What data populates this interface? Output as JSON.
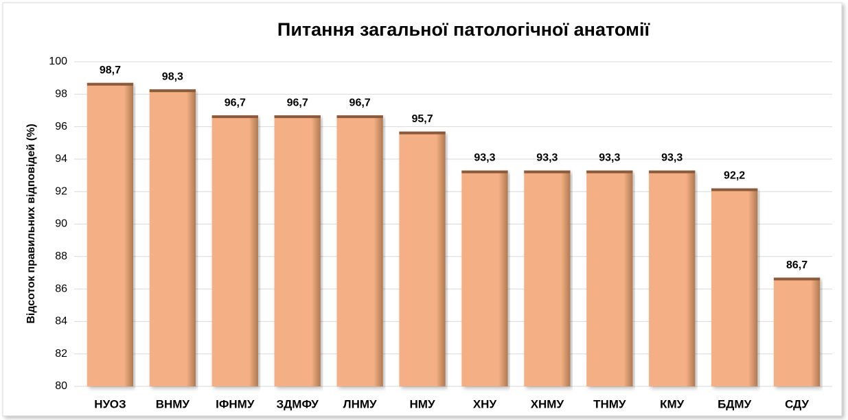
{
  "chart_data": {
    "type": "bar",
    "title": "Питання загальної патологічної анатомії",
    "y_label": "Відсоток правильних відповідей (%)",
    "categories": [
      "НУОЗ",
      "ВНМУ",
      "ІФНМУ",
      "ЗДМФУ",
      "ЛНМУ",
      "НМУ",
      "ХНУ",
      "ХНМУ",
      "ТНМУ",
      "КМУ",
      "БДМУ",
      "СДУ"
    ],
    "values": [
      98.7,
      98.3,
      96.7,
      96.7,
      96.7,
      95.7,
      93.3,
      93.3,
      93.3,
      93.3,
      92.2,
      86.7
    ],
    "value_labels": [
      "98,7",
      "98,3",
      "96,7",
      "96,7",
      "96,7",
      "95,7",
      "93,3",
      "93,3",
      "93,3",
      "93,3",
      "92,2",
      "86,7"
    ],
    "color": "#f4b084",
    "ylim": [
      80,
      100
    ],
    "yticks": [
      80,
      82,
      84,
      86,
      88,
      90,
      92,
      94,
      96,
      98,
      100
    ],
    "grid": true
  }
}
